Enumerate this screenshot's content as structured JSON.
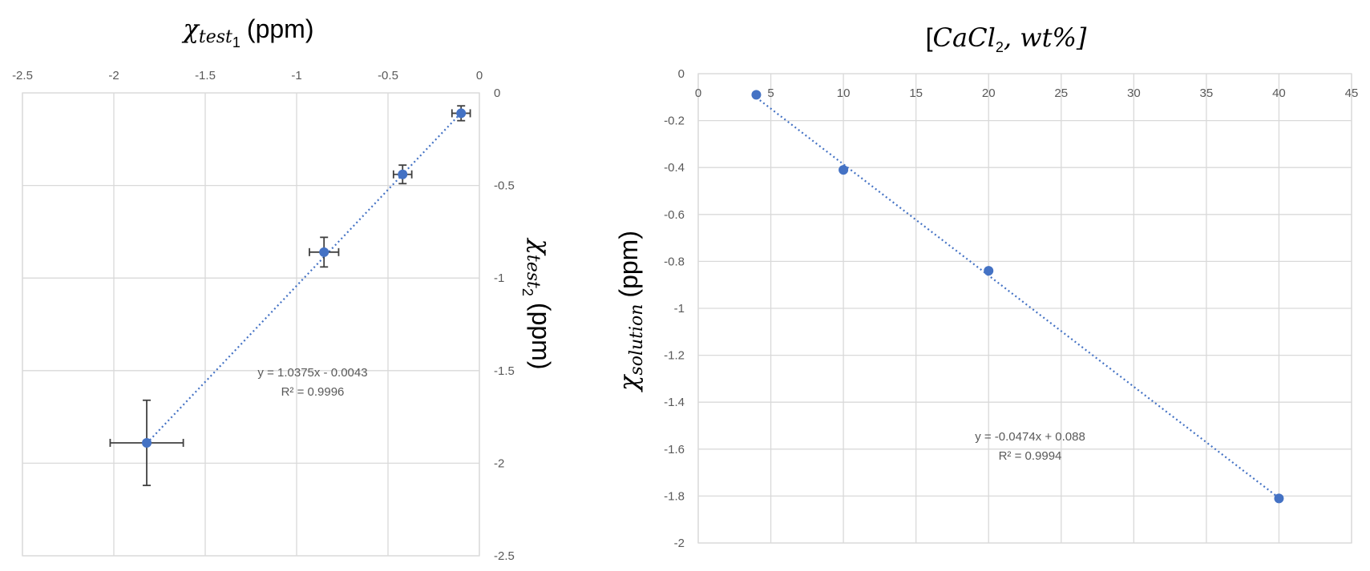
{
  "chart_data": [
    {
      "type": "scatter",
      "x_axis": {
        "title_main": "χ",
        "title_sub": "test",
        "title_subsub": "1",
        "title_unit": "(ppm)",
        "range": [
          -2.5,
          0
        ],
        "ticks": [
          -2.5,
          -2,
          -1.5,
          -1,
          -0.5,
          0
        ],
        "tick_labels": [
          "-2.5",
          "-2",
          "-1.5",
          "-1",
          "-0.5",
          "0"
        ],
        "position": "top"
      },
      "y_axis": {
        "title_main": "χ",
        "title_sub": "test",
        "title_subsub": "2",
        "title_unit": "(ppm)",
        "range": [
          -2.5,
          0
        ],
        "ticks": [
          0,
          -0.5,
          -1,
          -1.5,
          -2,
          -2.5
        ],
        "tick_labels": [
          "0",
          "-0.5",
          "-1",
          "-1.5",
          "-2",
          "-2.5"
        ],
        "position": "right"
      },
      "grid": true,
      "points": [
        {
          "x": -0.1,
          "y": -0.11,
          "xerr": 0.05,
          "yerr": 0.04
        },
        {
          "x": -0.42,
          "y": -0.44,
          "xerr": 0.05,
          "yerr": 0.05
        },
        {
          "x": -0.85,
          "y": -0.86,
          "xerr": 0.08,
          "yerr": 0.08
        },
        {
          "x": -1.82,
          "y": -1.89,
          "xerr": 0.2,
          "yerr": 0.23
        }
      ],
      "trendline": {
        "slope": 1.0375,
        "intercept": -0.0043,
        "x_range": [
          -1.82,
          -0.1
        ],
        "equation_label": "y = 1.0375x - 0.0043",
        "r2_label": "R² = 0.9996"
      }
    },
    {
      "type": "scatter",
      "title": "[CaCl₂, wt%]",
      "title_parts": {
        "open": "[",
        "main": "CaCl",
        "sub": "2",
        "rest": ", wt%]"
      },
      "x_axis": {
        "range": [
          0,
          45
        ],
        "ticks": [
          0,
          5,
          10,
          15,
          20,
          25,
          30,
          35,
          40,
          45
        ],
        "tick_labels": [
          "0",
          "5",
          "10",
          "15",
          "20",
          "25",
          "30",
          "35",
          "40",
          "45"
        ],
        "position": "top"
      },
      "y_axis": {
        "title_main": "χ",
        "title_sub": "solution",
        "title_unit": "(ppm)",
        "range": [
          -2,
          0
        ],
        "ticks": [
          0,
          -0.2,
          -0.4,
          -0.6,
          -0.8,
          -1,
          -1.2,
          -1.4,
          -1.6,
          -1.8,
          -2
        ],
        "tick_labels": [
          "0",
          "-0.2",
          "-0.4",
          "-0.6",
          "-0.8",
          "-1",
          "-1.2",
          "-1.4",
          "-1.6",
          "-1.8",
          "-2"
        ],
        "position": "left"
      },
      "grid": true,
      "points": [
        {
          "x": 4,
          "y": -0.09
        },
        {
          "x": 10,
          "y": -0.41
        },
        {
          "x": 20,
          "y": -0.84
        },
        {
          "x": 40,
          "y": -1.81
        }
      ],
      "trendline": {
        "slope": -0.0474,
        "intercept": 0.088,
        "x_range": [
          4,
          40
        ],
        "equation_label": "y = -0.0474x + 0.088",
        "r2_label": "R² = 0.9994"
      }
    }
  ],
  "colors": {
    "marker": "#4472c4",
    "trendline": "#4472c4",
    "grid": "#d9d9d9",
    "error_bar": "#404040",
    "tick_text": "#595959"
  }
}
